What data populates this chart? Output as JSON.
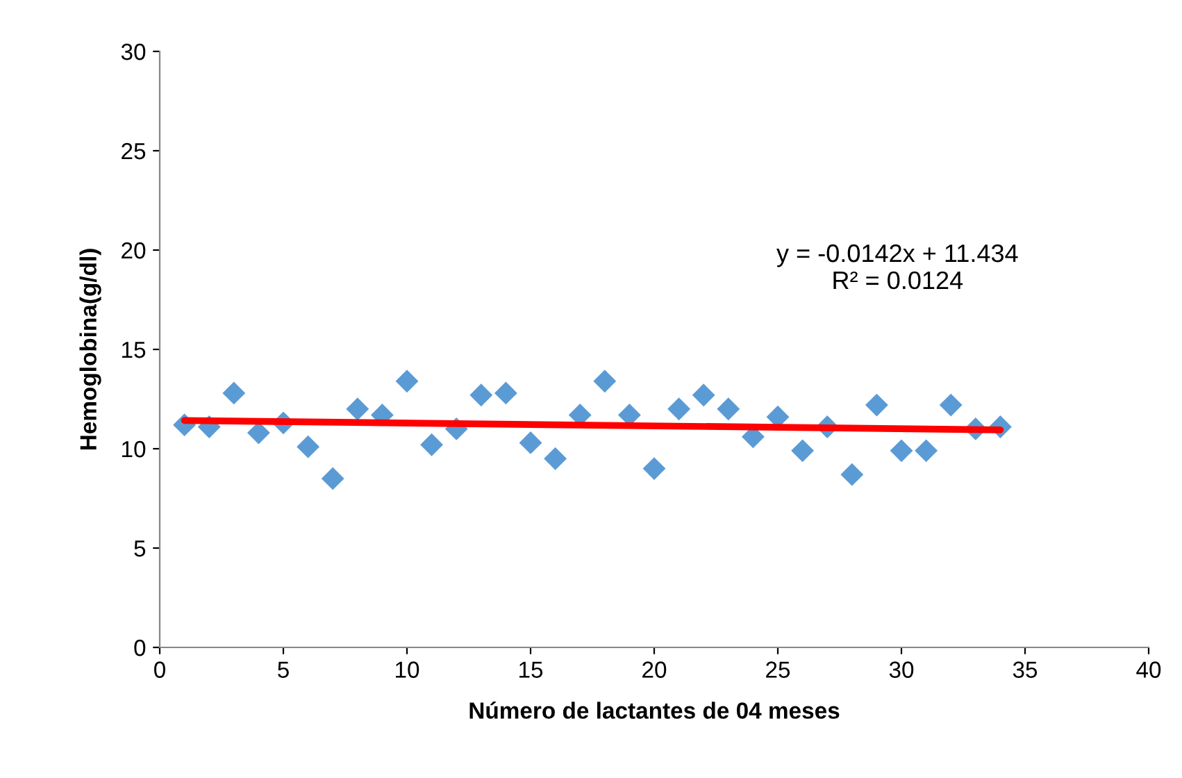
{
  "chart_data": {
    "type": "scatter",
    "xlabel": "Número de lactantes de 04 meses",
    "ylabel": "Hemoglobina(g/dl)",
    "xlim": [
      0,
      40
    ],
    "xticks": [
      0,
      5,
      10,
      15,
      20,
      25,
      30,
      35,
      40
    ],
    "ylim": [
      0,
      30
    ],
    "yticks": [
      0,
      5,
      10,
      15,
      20,
      25,
      30
    ],
    "grid": false,
    "series": [
      {
        "marker": "diamond",
        "color": "#5b9bd5",
        "x": [
          1,
          2,
          3,
          4,
          5,
          6,
          7,
          8,
          9,
          10,
          11,
          12,
          13,
          14,
          15,
          16,
          17,
          18,
          19,
          20,
          21,
          22,
          23,
          24,
          25,
          26,
          27,
          28,
          29,
          30,
          31,
          32,
          33,
          34
        ],
        "values": [
          11.2,
          11.1,
          12.8,
          10.8,
          11.3,
          10.1,
          8.5,
          12.0,
          11.7,
          13.4,
          10.2,
          11.0,
          12.7,
          12.8,
          10.3,
          9.5,
          11.7,
          13.4,
          11.7,
          9.0,
          12.0,
          12.7,
          12.0,
          10.6,
          11.6,
          9.9,
          11.1,
          8.7,
          12.2,
          9.9,
          9.9,
          12.2,
          11.0,
          11.1
        ]
      },
      {
        "type": "line",
        "color": "#ff0000",
        "x": [
          1,
          34
        ],
        "values": [
          11.42,
          10.95
        ]
      }
    ],
    "annotations": [
      "y = -0.0142x + 11.434\nR² = 0.0124"
    ]
  }
}
